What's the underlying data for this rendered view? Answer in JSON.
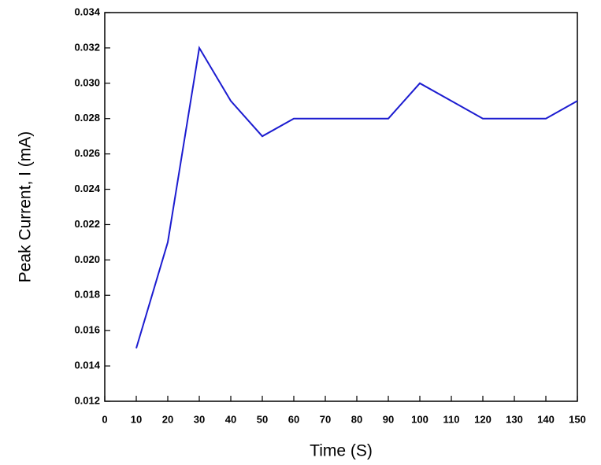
{
  "chart_data": {
    "type": "line",
    "x_label": "Time (S)",
    "y_label": "Peak Current, I (mA)",
    "x": [
      10,
      20,
      30,
      40,
      50,
      60,
      70,
      80,
      90,
      100,
      110,
      120,
      130,
      140,
      150
    ],
    "series": [
      {
        "color": "#1c1cd0",
        "values": [
          0.015,
          0.021,
          0.032,
          0.029,
          0.027,
          0.028,
          0.028,
          0.028,
          0.028,
          0.03,
          0.029,
          0.028,
          0.028,
          0.028,
          0.029
        ]
      }
    ],
    "xlim": [
      0,
      150
    ],
    "xticks": [
      0,
      10,
      20,
      30,
      40,
      50,
      60,
      70,
      80,
      90,
      100,
      110,
      120,
      130,
      140,
      150
    ],
    "ylim": [
      0.012,
      0.034
    ],
    "yticks": [
      0.012,
      0.014,
      0.016,
      0.018,
      {
        "value": 0.02,
        "label": "0.020"
      },
      0.022,
      0.024,
      0.026,
      0.028,
      {
        "value": 0.03,
        "label": "0.030"
      },
      0.032,
      0.034
    ]
  }
}
